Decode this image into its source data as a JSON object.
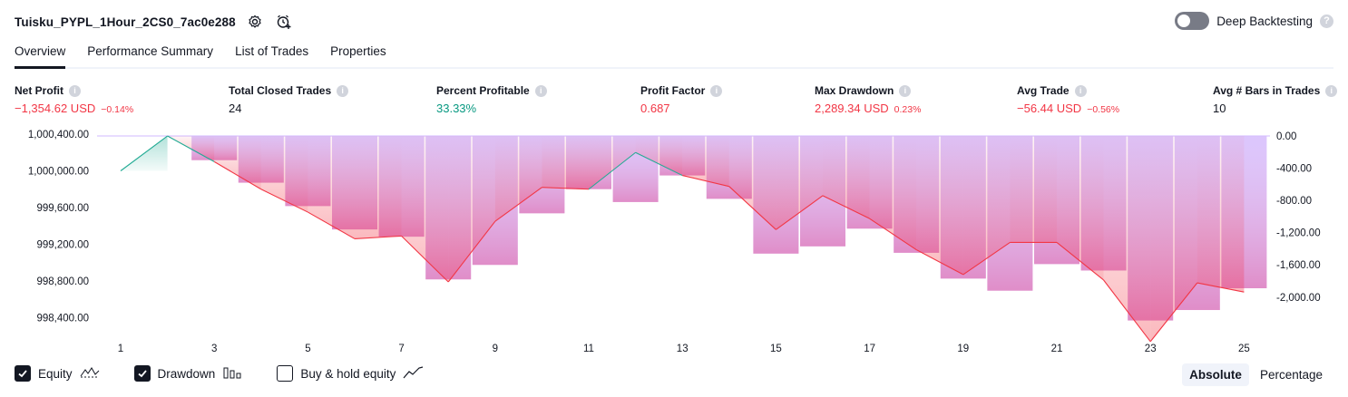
{
  "header": {
    "strategy_name": "Tuisku_PYPL_1Hour_2CS0_7ac0e288",
    "icons": [
      "settings-icon",
      "add-alert-icon"
    ]
  },
  "deep_backtesting": {
    "label": "Deep Backtesting",
    "enabled": false,
    "help": "?"
  },
  "tabs": [
    {
      "label": "Overview",
      "active": true
    },
    {
      "label": "Performance Summary",
      "active": false
    },
    {
      "label": "List of Trades",
      "active": false
    },
    {
      "label": "Properties",
      "active": false
    }
  ],
  "stats": [
    {
      "label": "Net Profit",
      "value": "−1,354.62 USD",
      "pct": "−0.14%",
      "tone": "neg"
    },
    {
      "label": "Total Closed Trades",
      "value": "24",
      "pct": "",
      "tone": "neu"
    },
    {
      "label": "Percent Profitable",
      "value": "33.33%",
      "pct": "",
      "tone": "pos"
    },
    {
      "label": "Profit Factor",
      "value": "0.687",
      "pct": "",
      "tone": "neg"
    },
    {
      "label": "Max Drawdown",
      "value": "2,289.34 USD",
      "pct": "0.23%",
      "tone": "neg"
    },
    {
      "label": "Avg Trade",
      "value": "−56.44 USD",
      "pct": "−0.56%",
      "tone": "neg"
    },
    {
      "label": "Avg # Bars in Trades",
      "value": "10",
      "pct": "",
      "tone": "neu"
    }
  ],
  "chart_data": {
    "type": "line",
    "series": [
      {
        "name": "Equity",
        "x": [
          1,
          2,
          3,
          4,
          5,
          6,
          7,
          8,
          9,
          10,
          11,
          12,
          13,
          14,
          15,
          16,
          17,
          18,
          19,
          20,
          21,
          22,
          23,
          24,
          25
        ],
        "values": [
          1000000,
          1000380,
          1000100,
          999800,
          999550,
          999260,
          999290,
          998790,
          999450,
          999820,
          999800,
          1000200,
          999950,
          999830,
          999360,
          999730,
          999480,
          999140,
          998870,
          999220,
          999220,
          998810,
          998140,
          998780,
          998680
        ]
      },
      {
        "name": "Drawdown",
        "x": [
          2,
          3,
          4,
          5,
          6,
          7,
          8,
          9,
          10,
          11,
          12,
          13,
          14,
          15,
          16,
          17,
          18,
          19,
          20,
          21,
          22,
          23,
          24,
          25
        ],
        "values": [
          0,
          -300,
          -580,
          -870,
          -1160,
          -1250,
          -1780,
          -1600,
          -960,
          -660,
          -820,
          -490,
          -780,
          -1460,
          -1370,
          -1150,
          -1450,
          -1770,
          -1920,
          -1590,
          -1670,
          -2290,
          -2160,
          -1890
        ]
      }
    ],
    "x_ticks": [
      1,
      3,
      5,
      7,
      9,
      11,
      13,
      15,
      17,
      19,
      21,
      23,
      25
    ],
    "y_left_ticks": [
      "1,000,400.00",
      "1,000,000.00",
      "999,600.00",
      "999,200.00",
      "998,800.00",
      "998,400.00"
    ],
    "y_left_values": [
      1000400,
      1000000,
      999600,
      999200,
      998800,
      998400
    ],
    "y_right_ticks": [
      "0.00",
      "-400.00",
      "-800.00",
      "-1,200.00",
      "-1,600.00",
      "-2,000.00"
    ],
    "y_right_values": [
      0,
      -400,
      -800,
      -1200,
      -1600,
      -2000
    ],
    "colors": {
      "equity_up": "#22ab94",
      "equity_down": "#f23645",
      "drawdown_bar": "#d1b8ff",
      "drawdown_fill": "#f06292"
    }
  },
  "footer": {
    "checks": [
      {
        "label": "Equity",
        "checked": true,
        "icon": "equity-icon"
      },
      {
        "label": "Drawdown",
        "checked": true,
        "icon": "drawdown-icon"
      },
      {
        "label": "Buy & hold equity",
        "checked": false,
        "icon": "buy-hold-icon"
      }
    ],
    "modes": [
      {
        "label": "Absolute",
        "active": true
      },
      {
        "label": "Percentage",
        "active": false
      }
    ]
  }
}
